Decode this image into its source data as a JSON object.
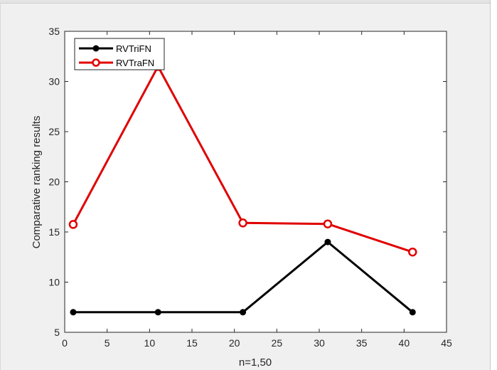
{
  "chart_data": {
    "type": "line",
    "title": "",
    "xlabel": "n=1,50",
    "ylabel": "Comparative ranking results",
    "xlim": [
      0,
      45
    ],
    "ylim": [
      5,
      35
    ],
    "xticks": [
      0,
      5,
      10,
      15,
      20,
      25,
      30,
      35,
      40,
      45
    ],
    "yticks": [
      5,
      10,
      15,
      20,
      25,
      30,
      35
    ],
    "grid": false,
    "legend_position": "top-left",
    "x": [
      1,
      11,
      21,
      31,
      41
    ],
    "series": [
      {
        "name": "RVTriFN",
        "values": [
          7,
          7,
          7,
          14,
          7
        ],
        "color": "#000000",
        "marker": "filled-circle"
      },
      {
        "name": "RVTraFN",
        "values": [
          15.75,
          31.5,
          15.9,
          15.8,
          13
        ],
        "color": "#e00000",
        "marker": "open-circle"
      }
    ]
  }
}
